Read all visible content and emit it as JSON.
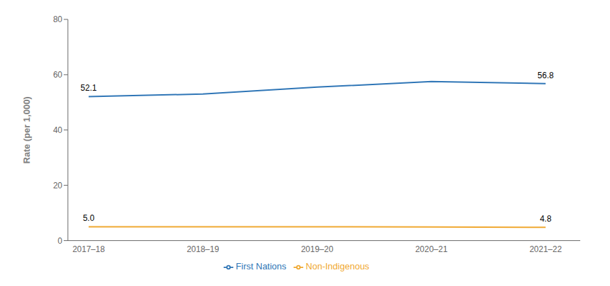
{
  "chart_data": {
    "type": "line",
    "categories": [
      "2017–18",
      "2018–19",
      "2019–20",
      "2020–21",
      "2021–22"
    ],
    "series": [
      {
        "name": "First Nations",
        "color": "#2E75B6",
        "values": [
          52.1,
          53.0,
          55.5,
          57.5,
          56.8
        ]
      },
      {
        "name": "Non-Indigenous",
        "color": "#F0A830",
        "values": [
          5.0,
          5.0,
          5.0,
          4.9,
          4.8
        ]
      }
    ],
    "y_label": "Rate (per 1,000)",
    "ylim": [
      0,
      80
    ],
    "yticks": [
      0,
      20,
      40,
      60,
      80
    ],
    "grid": false,
    "legend": "bottom",
    "annotations": [
      {
        "text": "52.1",
        "x": "2017–18",
        "y": 52.1
      },
      {
        "text": "56.8",
        "x": "2021–22",
        "y": 56.8
      },
      {
        "text": "5.0",
        "x": "2017–18",
        "y": 5.0
      },
      {
        "text": "4.8",
        "x": "2021–22",
        "y": 4.8
      }
    ]
  }
}
